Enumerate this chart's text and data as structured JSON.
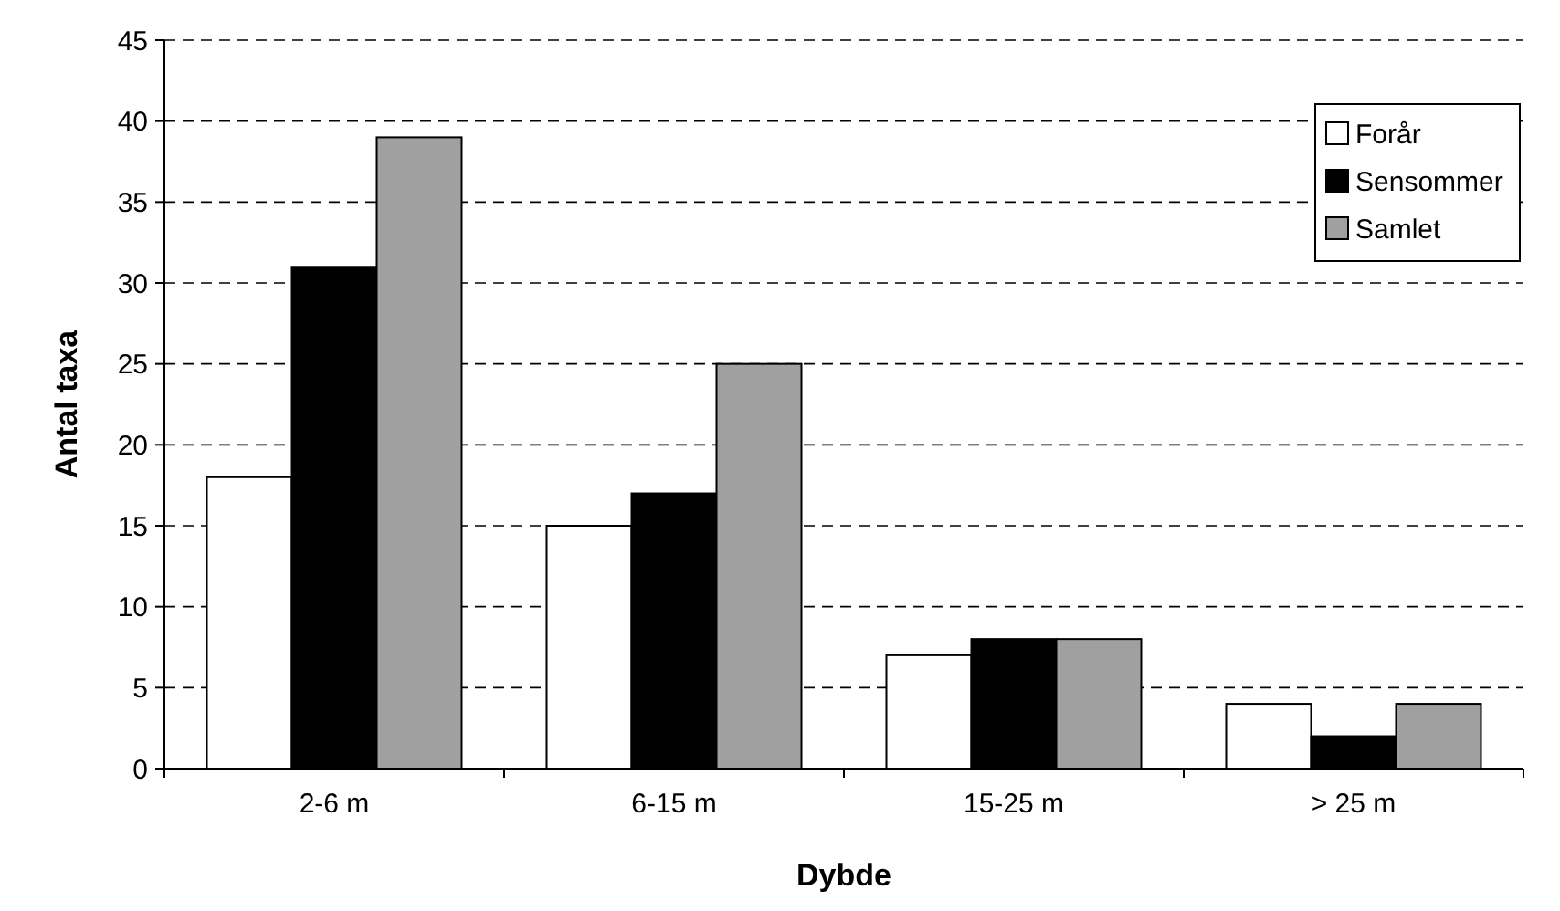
{
  "chart_data": {
    "type": "bar",
    "xlabel": "Dybde",
    "ylabel": "Antal taxa",
    "categories": [
      "2-6 m",
      "6-15 m",
      "15-25 m",
      "> 25 m"
    ],
    "series": [
      {
        "name": "Forår",
        "color": "#ffffff",
        "values": [
          18,
          15,
          7,
          4
        ]
      },
      {
        "name": "Sensommer",
        "color": "#000000",
        "values": [
          31,
          17,
          8,
          2
        ]
      },
      {
        "name": "Samlet",
        "color": "#a0a0a0",
        "values": [
          39,
          25,
          8,
          4
        ]
      }
    ],
    "ylim": [
      0,
      45
    ],
    "yticks": [
      0,
      5,
      10,
      15,
      20,
      25,
      30,
      35,
      40,
      45
    ],
    "grid": "y",
    "legend": "top right"
  }
}
